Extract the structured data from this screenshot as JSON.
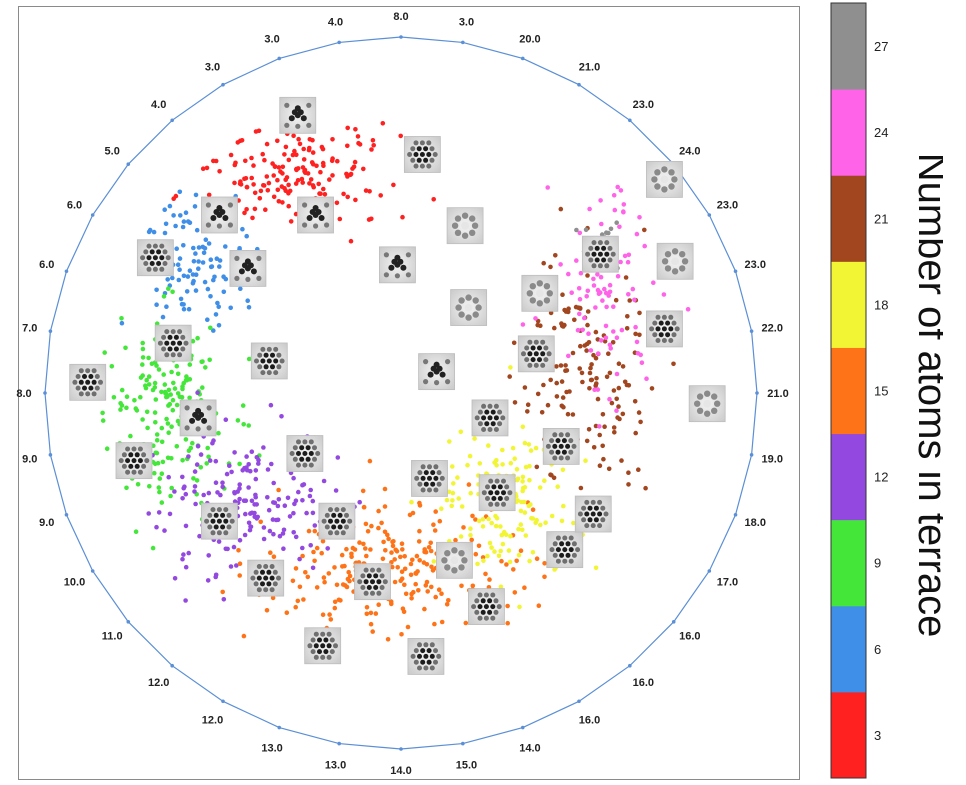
{
  "chart_data": {
    "type": "scatter",
    "title": "",
    "colorbar": {
      "label": "Number of atoms in terrace",
      "ticks": [
        3,
        6,
        9,
        12,
        15,
        18,
        21,
        24,
        27
      ],
      "colors": [
        "#ff2020",
        "#3f8ee8",
        "#44e63a",
        "#9349e0",
        "#ff7318",
        "#f1f534",
        "#a1461f",
        "#ff63e8",
        "#8f8f8f"
      ]
    },
    "ring_labels": [
      "8.0",
      "3.0",
      "20.0",
      "21.0",
      "23.0",
      "24.0",
      "23.0",
      "23.0",
      "22.0",
      "21.0",
      "19.0",
      "18.0",
      "17.0",
      "16.0",
      "16.0",
      "16.0",
      "14.0",
      "15.0",
      "14.0",
      "13.0",
      "13.0",
      "12.0",
      "12.0",
      "11.0",
      "10.0",
      "9.0",
      "9.0",
      "8.0",
      "7.0",
      "6.0",
      "6.0",
      "5.0",
      "4.0",
      "3.0",
      "3.0",
      "4.0"
    ],
    "series": [
      {
        "atoms": 3,
        "count": 170,
        "center": [
          -0.28,
          -0.62
        ],
        "spread": [
          0.14,
          0.065
        ]
      },
      {
        "atoms": 6,
        "count": 110,
        "center": [
          -0.58,
          -0.36
        ],
        "spread": [
          0.075,
          0.1
        ]
      },
      {
        "atoms": 9,
        "count": 190,
        "center": [
          -0.66,
          0.05
        ],
        "spread": [
          0.09,
          0.13
        ]
      },
      {
        "atoms": 12,
        "count": 180,
        "center": [
          -0.43,
          0.3
        ],
        "spread": [
          0.12,
          0.1
        ]
      },
      {
        "atoms": 15,
        "count": 260,
        "center": [
          -0.02,
          0.49
        ],
        "spread": [
          0.2,
          0.09
        ]
      },
      {
        "atoms": 18,
        "count": 150,
        "center": [
          0.3,
          0.3
        ],
        "spread": [
          0.1,
          0.11
        ]
      },
      {
        "atoms": 21,
        "count": 160,
        "center": [
          0.52,
          -0.07
        ],
        "spread": [
          0.09,
          0.16
        ]
      },
      {
        "atoms": 24,
        "count": 90,
        "center": [
          0.58,
          -0.3
        ],
        "spread": [
          0.08,
          0.14
        ]
      },
      {
        "atoms": 27,
        "count": 12,
        "center": [
          0.56,
          -0.45
        ],
        "spread": [
          0.04,
          0.03
        ]
      }
    ],
    "thumbnails": [
      {
        "x": -0.29,
        "y": -0.78,
        "pattern": "tri"
      },
      {
        "x": 0.06,
        "y": -0.67,
        "pattern": "hex"
      },
      {
        "x": -0.51,
        "y": -0.5,
        "pattern": "tri"
      },
      {
        "x": -0.24,
        "y": -0.5,
        "pattern": "tri"
      },
      {
        "x": -0.69,
        "y": -0.38,
        "pattern": "hex"
      },
      {
        "x": -0.43,
        "y": -0.35,
        "pattern": "tri"
      },
      {
        "x": -0.01,
        "y": -0.36,
        "pattern": "tri"
      },
      {
        "x": -0.64,
        "y": -0.14,
        "pattern": "hex"
      },
      {
        "x": -0.37,
        "y": -0.09,
        "pattern": "hex"
      },
      {
        "x": -0.88,
        "y": -0.03,
        "pattern": "hex"
      },
      {
        "x": -0.57,
        "y": 0.07,
        "pattern": "tri"
      },
      {
        "x": -0.75,
        "y": 0.19,
        "pattern": "hex"
      },
      {
        "x": -0.27,
        "y": 0.17,
        "pattern": "hex"
      },
      {
        "x": -0.51,
        "y": 0.36,
        "pattern": "hex"
      },
      {
        "x": -0.18,
        "y": 0.36,
        "pattern": "hex"
      },
      {
        "x": -0.38,
        "y": 0.52,
        "pattern": "hex"
      },
      {
        "x": -0.08,
        "y": 0.53,
        "pattern": "hex"
      },
      {
        "x": -0.22,
        "y": 0.71,
        "pattern": "hex"
      },
      {
        "x": 0.07,
        "y": 0.74,
        "pattern": "hex"
      },
      {
        "x": 0.15,
        "y": 0.47,
        "pattern": "ring"
      },
      {
        "x": 0.24,
        "y": 0.6,
        "pattern": "hex"
      },
      {
        "x": 0.08,
        "y": 0.24,
        "pattern": "hex"
      },
      {
        "x": 0.27,
        "y": 0.28,
        "pattern": "hex"
      },
      {
        "x": 0.25,
        "y": 0.07,
        "pattern": "hex"
      },
      {
        "x": 0.46,
        "y": 0.44,
        "pattern": "hex"
      },
      {
        "x": 0.54,
        "y": 0.34,
        "pattern": "hex"
      },
      {
        "x": 0.45,
        "y": 0.15,
        "pattern": "hex"
      },
      {
        "x": 0.38,
        "y": -0.11,
        "pattern": "hex"
      },
      {
        "x": 0.19,
        "y": -0.24,
        "pattern": "ring"
      },
      {
        "x": 0.39,
        "y": -0.28,
        "pattern": "ring"
      },
      {
        "x": 0.18,
        "y": -0.47,
        "pattern": "ring"
      },
      {
        "x": 0.56,
        "y": -0.39,
        "pattern": "hex"
      },
      {
        "x": 0.77,
        "y": -0.37,
        "pattern": "ring"
      },
      {
        "x": 0.74,
        "y": -0.18,
        "pattern": "hex"
      },
      {
        "x": 0.86,
        "y": 0.03,
        "pattern": "ring"
      },
      {
        "x": 0.74,
        "y": -0.6,
        "pattern": "ring"
      },
      {
        "x": 0.1,
        "y": -0.06,
        "pattern": "tri"
      }
    ]
  }
}
